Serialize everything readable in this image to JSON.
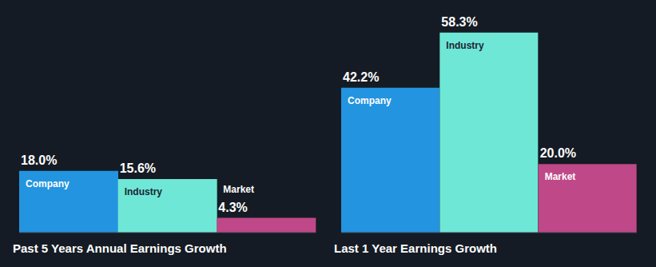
{
  "chart_data": [
    {
      "type": "bar",
      "title": "Past 5 Years Annual Earnings Growth",
      "categories": [
        "Company",
        "Industry",
        "Market"
      ],
      "values": [
        18.0,
        15.6,
        4.3
      ],
      "value_labels": [
        "18.0%",
        "15.6%",
        "4.3%"
      ],
      "colors": [
        "#2394df",
        "#6fe7d6",
        "#bf4888"
      ],
      "ylim": [
        0,
        65
      ],
      "tick_labels": false,
      "data_labels": true
    },
    {
      "type": "bar",
      "title": "Last 1 Year Earnings Growth",
      "categories": [
        "Company",
        "Industry",
        "Market"
      ],
      "values": [
        42.2,
        58.3,
        20.0
      ],
      "value_labels": [
        "42.2%",
        "58.3%",
        "20.0%"
      ],
      "colors": [
        "#2394df",
        "#6fe7d6",
        "#bf4888"
      ],
      "ylim": [
        0,
        65
      ],
      "tick_labels": false,
      "data_labels": true
    }
  ]
}
